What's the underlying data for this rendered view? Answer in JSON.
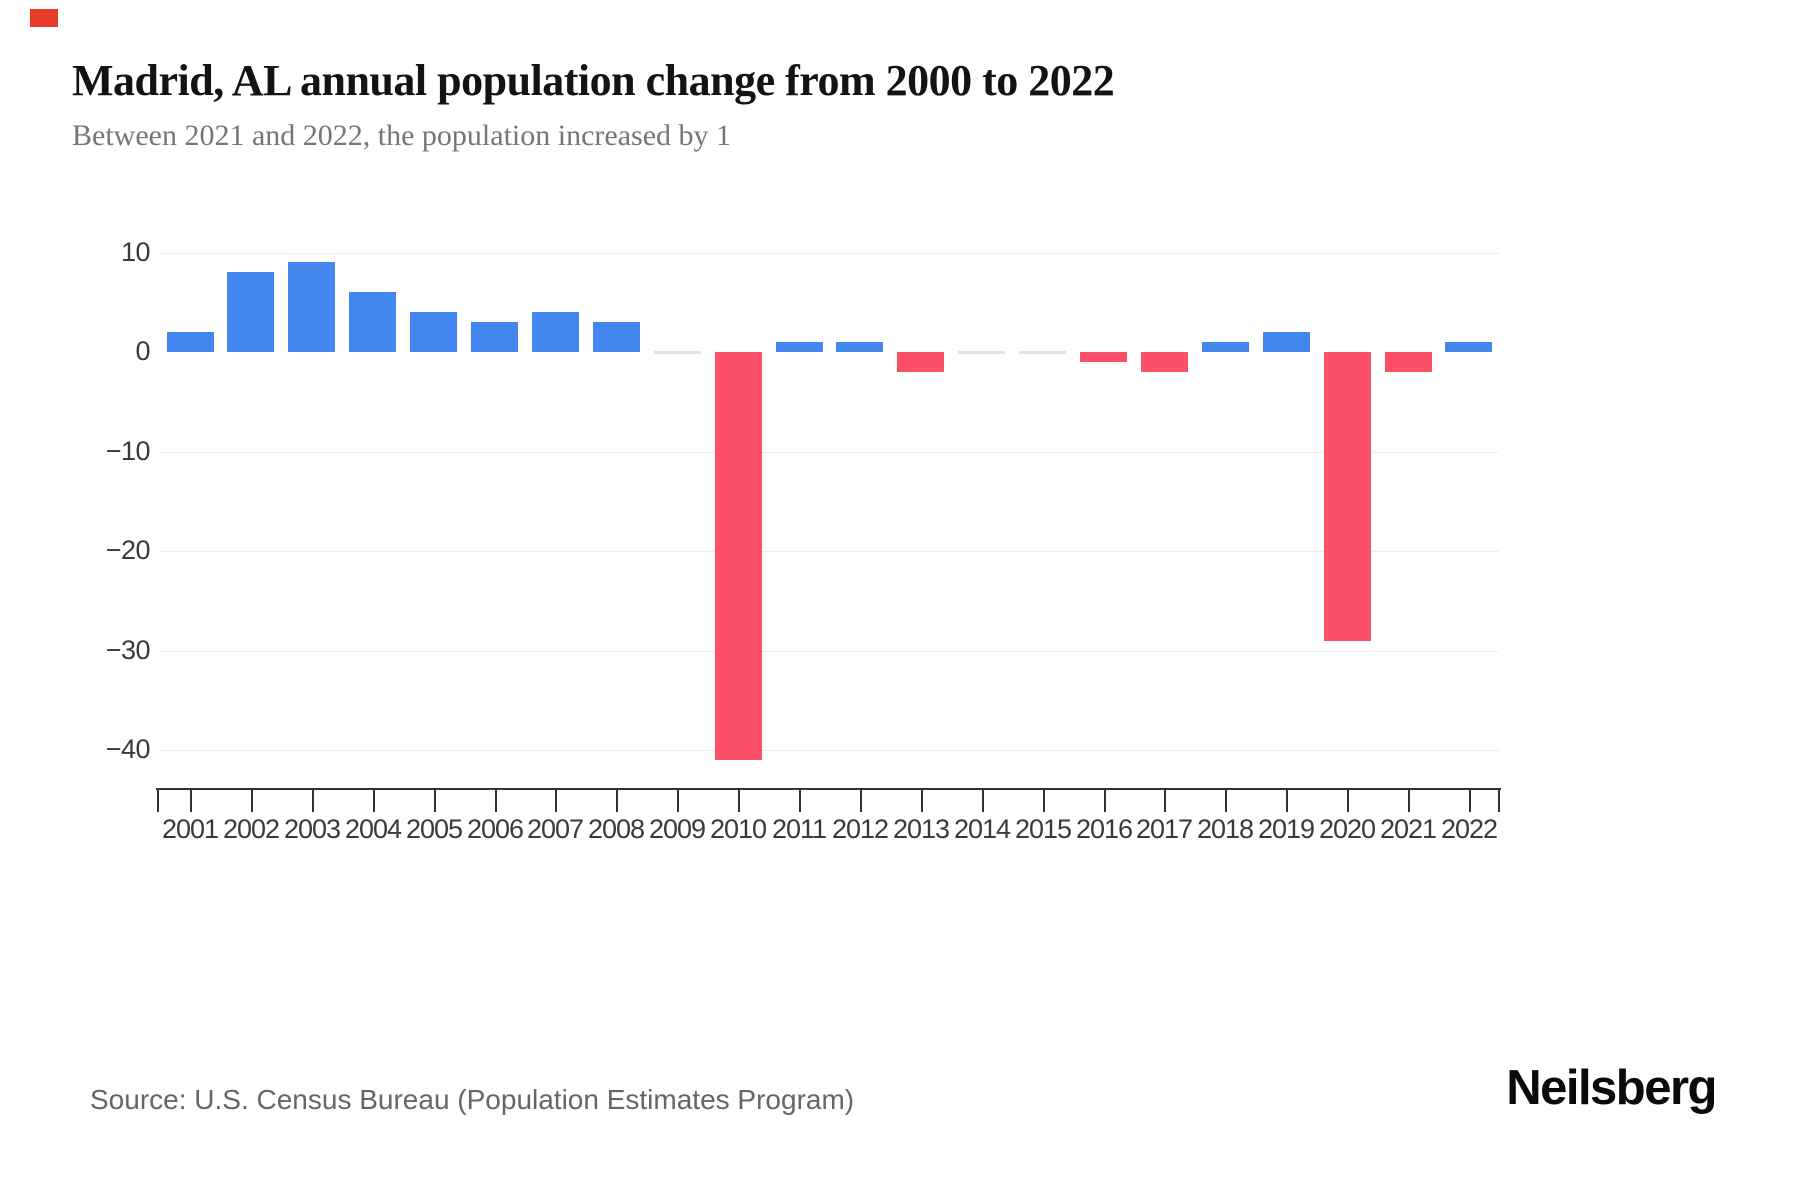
{
  "header": {
    "title": "Madrid, AL annual population change from 2000 to 2022",
    "subtitle": "Between 2021 and 2022, the population increased by 1"
  },
  "footer": {
    "source": "Source: U.S. Census Bureau (Population Estimates Program)",
    "brand": "Neilsberg"
  },
  "colors": {
    "positive_bar": "#4486ef",
    "negative_bar": "#fa5169",
    "zero_bar": "#e3e3e3",
    "gridline": "#ededed",
    "axis": "#333333",
    "brand_accent": "#e83b28"
  },
  "chart_data": {
    "type": "bar",
    "title": "Madrid, AL annual population change from 2000 to 2022",
    "subtitle": "Between 2021 and 2022, the population increased by 1",
    "xlabel": "",
    "ylabel": "",
    "categories": [
      "2001",
      "2002",
      "2003",
      "2004",
      "2005",
      "2006",
      "2007",
      "2008",
      "2009",
      "2010",
      "2011",
      "2012",
      "2013",
      "2014",
      "2015",
      "2016",
      "2017",
      "2018",
      "2019",
      "2020",
      "2021",
      "2022"
    ],
    "values": [
      2,
      8,
      9,
      6,
      4,
      3,
      4,
      3,
      0,
      -41,
      1,
      1,
      -2,
      0,
      0,
      -1,
      -2,
      1,
      2,
      -29,
      -2,
      1
    ],
    "y_ticks": [
      10,
      0,
      -10,
      -20,
      -30,
      -40
    ],
    "y_tick_labels": [
      "10",
      "0",
      "−10",
      "−20",
      "−30",
      "−40"
    ],
    "ylim": [
      -44,
      12
    ],
    "grid": "horizontal-only",
    "legend": "none",
    "positive_color": "#4486ef",
    "negative_color": "#fa5169"
  }
}
